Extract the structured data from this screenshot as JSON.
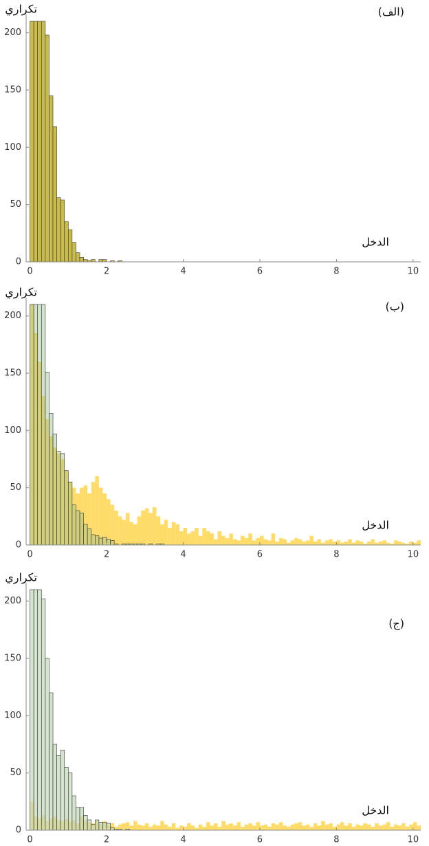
{
  "chart_data": [
    {
      "type": "histogram",
      "title": "(الف)",
      "xlabel": "الدخل",
      "ylabel": "تکراري",
      "xlim": [
        -0.1,
        10.2
      ],
      "ylim": [
        0,
        210
      ],
      "xticks": [
        0,
        2,
        4,
        6,
        8,
        10
      ],
      "yticks": [
        0,
        50,
        100,
        150,
        200
      ],
      "bins": [
        0,
        0.1,
        0.2,
        0.3,
        0.4,
        0.5,
        0.6,
        0.7,
        0.8,
        0.9,
        1,
        1.1,
        1.2,
        1.3,
        1.4,
        1.5,
        1.6,
        1.7,
        1.8,
        1.9,
        2,
        2.1,
        2.2,
        2.3,
        2.4,
        2.5,
        2.6,
        2.7,
        2.8,
        2.9,
        3,
        3.1,
        3.2,
        3.3,
        3.4,
        3.5,
        3.6,
        3.7,
        3.8,
        3.9,
        4,
        4.1,
        4.2,
        4.3,
        4.4,
        4.5,
        4.6,
        4.7,
        4.8,
        4.9,
        5,
        5.1,
        5.2,
        5.3,
        5.4,
        5.5,
        5.6,
        5.7,
        5.8,
        5.9,
        6,
        6.1,
        6.2,
        6.3,
        6.4,
        6.5,
        6.6,
        6.7,
        6.8,
        6.9,
        7,
        7.1,
        7.2,
        7.3,
        7.4,
        7.5,
        7.6,
        7.7,
        7.8,
        7.9,
        8,
        8.1,
        8.2,
        8.3,
        8.4,
        8.5,
        8.6,
        8.7,
        8.8,
        8.9,
        9,
        9.1,
        9.2,
        9.3,
        9.4,
        9.5,
        9.6,
        9.7,
        9.8,
        9.9,
        10,
        10.1,
        10.2
      ],
      "series": [
        {
          "color": "#c9bc4d",
          "edgecolor": "#333333",
          "opacity": 1,
          "values": [
            210,
            210,
            210,
            210,
            198,
            145,
            118,
            56,
            54,
            35,
            28,
            17,
            8,
            4,
            2,
            1,
            2,
            0,
            2,
            2,
            0,
            1,
            0,
            1,
            0,
            0,
            0,
            0,
            0,
            0,
            0,
            0,
            0,
            0,
            0,
            0,
            0,
            0,
            0,
            0,
            0,
            0,
            0,
            0,
            0,
            0,
            0,
            0,
            0,
            0,
            0,
            0,
            0,
            0,
            0,
            0,
            0,
            0,
            0,
            0,
            0,
            0,
            0,
            0,
            0,
            0,
            0,
            0,
            0,
            0,
            0,
            0,
            0,
            0,
            0,
            0,
            0,
            0,
            0,
            0,
            0,
            0,
            0,
            0,
            0,
            0,
            0,
            0,
            0,
            0,
            0,
            0,
            0,
            0,
            0,
            0,
            0,
            0,
            0,
            0,
            0,
            0
          ]
        }
      ]
    },
    {
      "type": "histogram",
      "title": "(ب)",
      "xlabel": "الدخل",
      "ylabel": "تکراري",
      "xlim": [
        -0.1,
        10.2
      ],
      "ylim": [
        0,
        210
      ],
      "xticks": [
        0,
        2,
        4,
        6,
        8,
        10
      ],
      "yticks": [
        0,
        50,
        100,
        150,
        200
      ],
      "bins": [
        0,
        0.1,
        0.2,
        0.3,
        0.4,
        0.5,
        0.6,
        0.7,
        0.8,
        0.9,
        1,
        1.1,
        1.2,
        1.3,
        1.4,
        1.5,
        1.6,
        1.7,
        1.8,
        1.9,
        2,
        2.1,
        2.2,
        2.3,
        2.4,
        2.5,
        2.6,
        2.7,
        2.8,
        2.9,
        3,
        3.1,
        3.2,
        3.3,
        3.4,
        3.5,
        3.6,
        3.7,
        3.8,
        3.9,
        4,
        4.1,
        4.2,
        4.3,
        4.4,
        4.5,
        4.6,
        4.7,
        4.8,
        4.9,
        5,
        5.1,
        5.2,
        5.3,
        5.4,
        5.5,
        5.6,
        5.7,
        5.8,
        5.9,
        6,
        6.1,
        6.2,
        6.3,
        6.4,
        6.5,
        6.6,
        6.7,
        6.8,
        6.9,
        7,
        7.1,
        7.2,
        7.3,
        7.4,
        7.5,
        7.6,
        7.7,
        7.8,
        7.9,
        8,
        8.1,
        8.2,
        8.3,
        8.4,
        8.5,
        8.6,
        8.7,
        8.8,
        8.9,
        9,
        9.1,
        9.2,
        9.3,
        9.4,
        9.5,
        9.6,
        9.7,
        9.8,
        9.9,
        10,
        10.1,
        10.2
      ],
      "series": [
        {
          "color": "#ffd54f",
          "opacity": 0.85,
          "values": [
            210,
            185,
            160,
            130,
            110,
            95,
            85,
            80,
            75,
            65,
            55,
            50,
            45,
            50,
            52,
            45,
            55,
            60,
            50,
            45,
            40,
            35,
            30,
            25,
            22,
            28,
            20,
            18,
            25,
            30,
            32,
            28,
            33,
            25,
            18,
            22,
            15,
            20,
            18,
            12,
            15,
            10,
            12,
            15,
            8,
            15,
            12,
            10,
            5,
            12,
            8,
            6,
            10,
            5,
            4,
            8,
            6,
            10,
            4,
            6,
            8,
            5,
            4,
            10,
            3,
            6,
            5,
            2,
            4,
            6,
            5,
            3,
            4,
            8,
            3,
            5,
            2,
            4,
            5,
            3,
            4,
            2,
            3,
            5,
            2,
            4,
            3,
            1,
            3,
            5,
            2,
            3,
            4,
            2,
            1,
            4,
            3,
            2,
            1,
            3,
            2,
            4
          ]
        },
        {
          "color": "#9cc293",
          "edgecolor": "#333333",
          "opacity": 0.45,
          "values": [
            210,
            210,
            210,
            210,
            151,
            115,
            97,
            82,
            80,
            65,
            55,
            35,
            30,
            28,
            18,
            14,
            9,
            8,
            6,
            7,
            5,
            4,
            1,
            0,
            1,
            1,
            1,
            1,
            1,
            1,
            0,
            1,
            0,
            1,
            1,
            0,
            0,
            0,
            0,
            0,
            0,
            0,
            0,
            0,
            0,
            0,
            0,
            0,
            0,
            0,
            0,
            0,
            0,
            0,
            0,
            0,
            0,
            0,
            0,
            0,
            0,
            0,
            0,
            0,
            0,
            0,
            0,
            0,
            0,
            0,
            0,
            0,
            0,
            0,
            0,
            0,
            0,
            0,
            0,
            0,
            0,
            0,
            0,
            0,
            0,
            0,
            0,
            0,
            0,
            0,
            0,
            0,
            0,
            0,
            0,
            0,
            0,
            0,
            0,
            0,
            0,
            0
          ]
        }
      ]
    },
    {
      "type": "histogram",
      "title": "(ج)",
      "xlabel": "الدخل",
      "ylabel": "تکراري",
      "xlim": [
        -0.1,
        10.2
      ],
      "ylim": [
        0,
        210
      ],
      "xticks": [
        0,
        2,
        4,
        6,
        8,
        10
      ],
      "yticks": [
        0,
        50,
        100,
        150,
        200
      ],
      "bins": [
        0,
        0.1,
        0.2,
        0.3,
        0.4,
        0.5,
        0.6,
        0.7,
        0.8,
        0.9,
        1,
        1.1,
        1.2,
        1.3,
        1.4,
        1.5,
        1.6,
        1.7,
        1.8,
        1.9,
        2,
        2.1,
        2.2,
        2.3,
        2.4,
        2.5,
        2.6,
        2.7,
        2.8,
        2.9,
        3,
        3.1,
        3.2,
        3.3,
        3.4,
        3.5,
        3.6,
        3.7,
        3.8,
        3.9,
        4,
        4.1,
        4.2,
        4.3,
        4.4,
        4.5,
        4.6,
        4.7,
        4.8,
        4.9,
        5,
        5.1,
        5.2,
        5.3,
        5.4,
        5.5,
        5.6,
        5.7,
        5.8,
        5.9,
        6,
        6.1,
        6.2,
        6.3,
        6.4,
        6.5,
        6.6,
        6.7,
        6.8,
        6.9,
        7,
        7.1,
        7.2,
        7.3,
        7.4,
        7.5,
        7.6,
        7.7,
        7.8,
        7.9,
        8,
        8.1,
        8.2,
        8.3,
        8.4,
        8.5,
        8.6,
        8.7,
        8.8,
        8.9,
        9,
        9.1,
        9.2,
        9.3,
        9.4,
        9.5,
        9.6,
        9.7,
        9.8,
        9.9,
        10,
        10.1,
        10.2
      ],
      "series": [
        {
          "color": "#ffd54f",
          "opacity": 0.85,
          "values": [
            25,
            12,
            10,
            13,
            8,
            10,
            12,
            9,
            8,
            10,
            7,
            9,
            6,
            12,
            8,
            7,
            6,
            8,
            5,
            8,
            4,
            6,
            3,
            5,
            6,
            7,
            4,
            8,
            5,
            4,
            6,
            3,
            5,
            4,
            8,
            5,
            3,
            6,
            2,
            4,
            3,
            6,
            4,
            2,
            5,
            3,
            7,
            4,
            6,
            3,
            8,
            5,
            6,
            4,
            7,
            3,
            5,
            6,
            4,
            7,
            4,
            5,
            3,
            6,
            5,
            7,
            4,
            3,
            5,
            6,
            7,
            4,
            5,
            3,
            6,
            4,
            8,
            5,
            6,
            3,
            5,
            7,
            4,
            6,
            3,
            5,
            4,
            6,
            5,
            3,
            6,
            4,
            5,
            7,
            3,
            5,
            4,
            6,
            3,
            5,
            7,
            4
          ]
        },
        {
          "color": "#c2d9bb",
          "edgecolor": "#333333",
          "opacity": 0.7,
          "values": [
            210,
            210,
            210,
            202,
            150,
            120,
            75,
            65,
            70,
            55,
            50,
            30,
            20,
            20,
            13,
            9,
            5,
            9,
            7,
            7,
            6,
            2,
            1,
            1,
            0,
            1,
            0,
            0,
            0,
            0,
            0,
            0,
            0,
            0,
            0,
            0,
            0,
            0,
            0,
            0,
            0,
            0,
            0,
            0,
            0,
            0,
            0,
            0,
            0,
            0,
            0,
            0,
            0,
            0,
            0,
            0,
            0,
            0,
            0,
            0,
            0,
            0,
            0,
            0,
            0,
            0,
            0,
            0,
            0,
            0,
            0,
            0,
            0,
            0,
            0,
            0,
            0,
            0,
            0,
            0,
            0,
            0,
            0,
            0,
            0,
            0,
            0,
            0,
            0,
            0,
            0,
            0,
            0,
            0,
            0,
            0,
            0,
            0,
            0,
            0,
            0,
            0
          ]
        }
      ]
    }
  ]
}
